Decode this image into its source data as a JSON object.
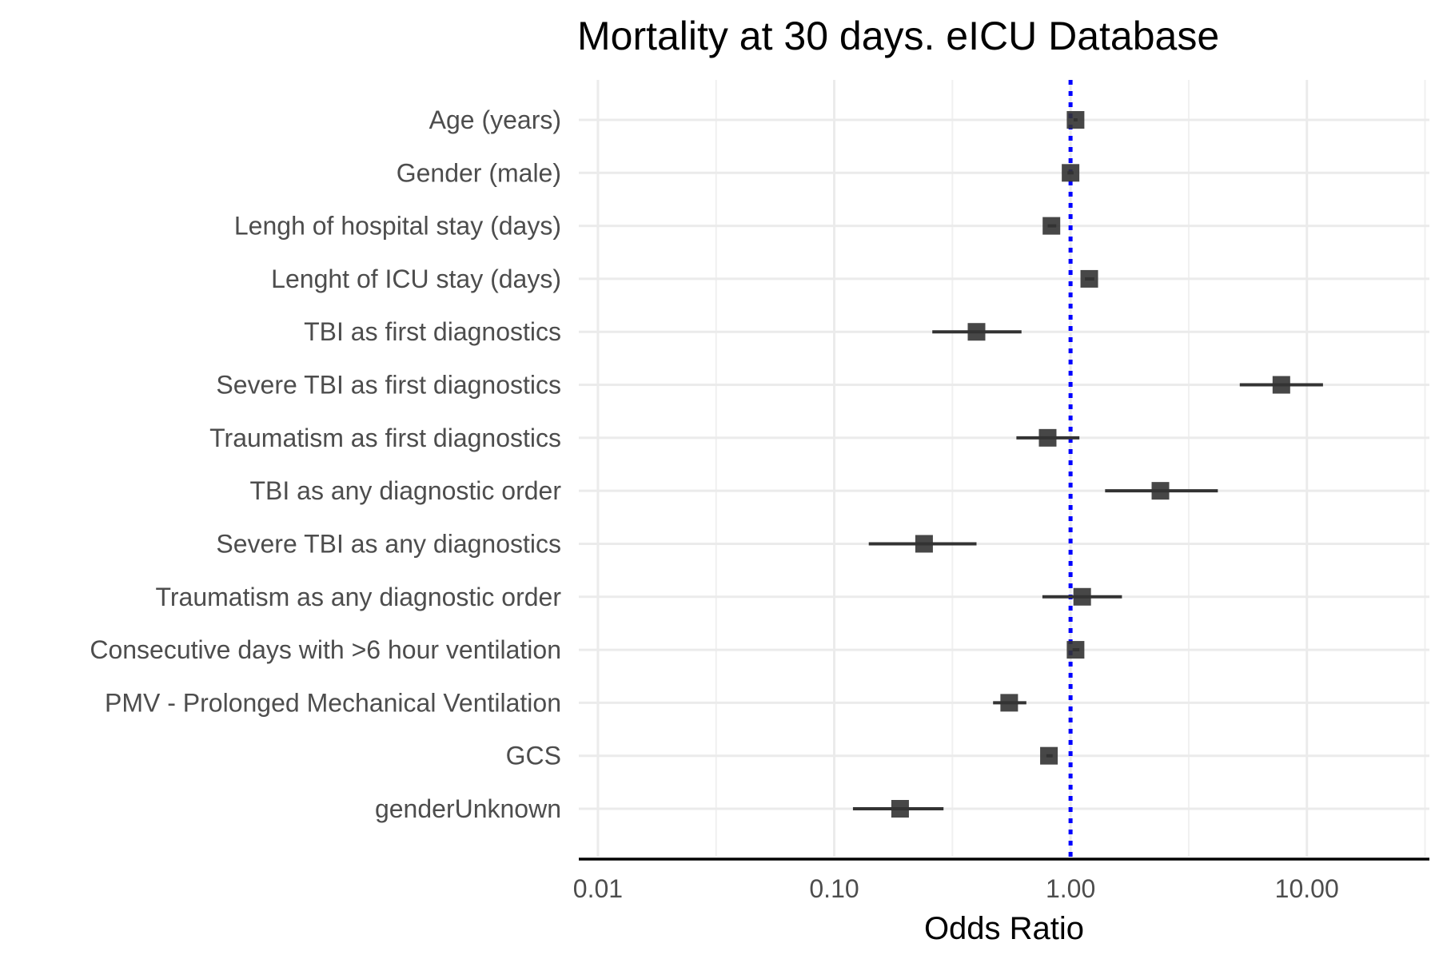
{
  "chart_data": {
    "type": "forest",
    "title": "Mortality at 30 days. eICU Database",
    "xlabel": "Odds Ratio",
    "ylabel": "",
    "x_scale": "log10",
    "xlim": [
      0.0083,
      33
    ],
    "x_ticks": [
      0.01,
      0.1,
      1,
      10
    ],
    "x_tick_labels": [
      "0.01",
      "0.10",
      "1.00",
      "10.00"
    ],
    "reference_line": {
      "x": 1.0,
      "style": "dotted",
      "color": "#0000ff"
    },
    "grid": true,
    "point_color": "#333333",
    "rows": [
      {
        "label": "Age (years)",
        "or": 1.05,
        "ci_low": 1.03,
        "ci_high": 1.07
      },
      {
        "label": "Gender (male)",
        "or": 1.0,
        "ci_low": 0.97,
        "ci_high": 1.03
      },
      {
        "label": "Lengh of hospital stay (days)",
        "or": 0.83,
        "ci_low": 0.8,
        "ci_high": 0.87
      },
      {
        "label": "Lenght of ICU stay (days)",
        "or": 1.2,
        "ci_low": 1.15,
        "ci_high": 1.26
      },
      {
        "label": "TBI as first diagnostics",
        "or": 0.4,
        "ci_low": 0.26,
        "ci_high": 0.62
      },
      {
        "label": "Severe TBI as first diagnostics",
        "or": 7.8,
        "ci_low": 5.2,
        "ci_high": 11.7
      },
      {
        "label": "Traumatism as first diagnostics",
        "or": 0.8,
        "ci_low": 0.59,
        "ci_high": 1.09
      },
      {
        "label": "TBI as any diagnostic order",
        "or": 2.4,
        "ci_low": 1.4,
        "ci_high": 4.2
      },
      {
        "label": "Severe TBI as any diagnostics",
        "or": 0.24,
        "ci_low": 0.14,
        "ci_high": 0.4
      },
      {
        "label": "Traumatism as any diagnostic order",
        "or": 1.12,
        "ci_low": 0.76,
        "ci_high": 1.65
      },
      {
        "label": "Consecutive days with >6 hour ventilation",
        "or": 1.05,
        "ci_low": 1.02,
        "ci_high": 1.09
      },
      {
        "label": "PMV - Prolonged Mechanical Ventilation",
        "or": 0.55,
        "ci_low": 0.47,
        "ci_high": 0.65
      },
      {
        "label": "GCS",
        "or": 0.81,
        "ci_low": 0.79,
        "ci_high": 0.84
      },
      {
        "label": "genderUnknown",
        "or": 0.19,
        "ci_low": 0.12,
        "ci_high": 0.29
      }
    ]
  }
}
